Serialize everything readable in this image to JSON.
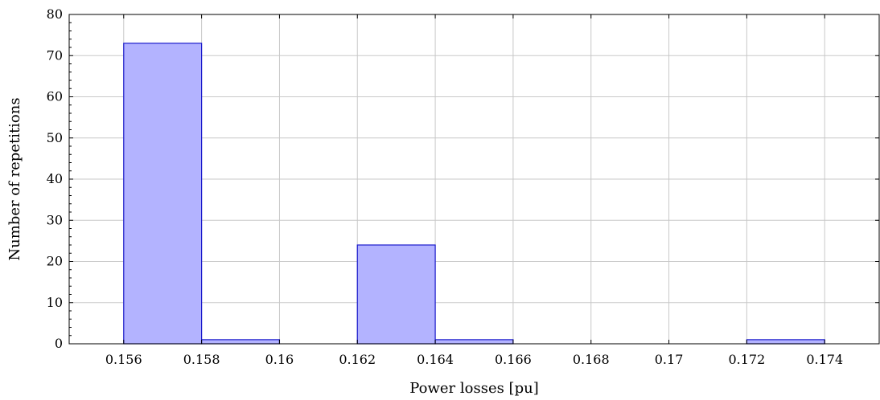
{
  "chart_data": {
    "type": "bar",
    "title": "",
    "xlabel": "Power losses [pu]",
    "ylabel": "Number of repetitions",
    "xlim": [
      0.1546,
      0.1754
    ],
    "ylim": [
      0,
      80
    ],
    "grid": true,
    "x_ticks": [
      0.156,
      0.158,
      0.16,
      0.162,
      0.164,
      0.166,
      0.168,
      0.17,
      0.172,
      0.174
    ],
    "x_tick_labels": [
      "0.156",
      "0.158",
      "0.16",
      "0.162",
      "0.164",
      "0.166",
      "0.168",
      "0.17",
      "0.172",
      "0.174"
    ],
    "y_ticks": [
      0,
      10,
      20,
      30,
      40,
      50,
      60,
      70,
      80
    ],
    "y_tick_labels": [
      "0",
      "10",
      "20",
      "30",
      "40",
      "50",
      "60",
      "70",
      "80"
    ],
    "bins": [
      {
        "x0": 0.156,
        "x1": 0.158,
        "value": 73
      },
      {
        "x0": 0.158,
        "x1": 0.16,
        "value": 1
      },
      {
        "x0": 0.162,
        "x1": 0.164,
        "value": 24
      },
      {
        "x0": 0.164,
        "x1": 0.166,
        "value": 1
      },
      {
        "x0": 0.172,
        "x1": 0.174,
        "value": 1
      }
    ],
    "colors": {
      "bar_fill": "#b3b3ff",
      "bar_stroke": "#1a1acc",
      "grid": "#c8c8c8"
    }
  }
}
